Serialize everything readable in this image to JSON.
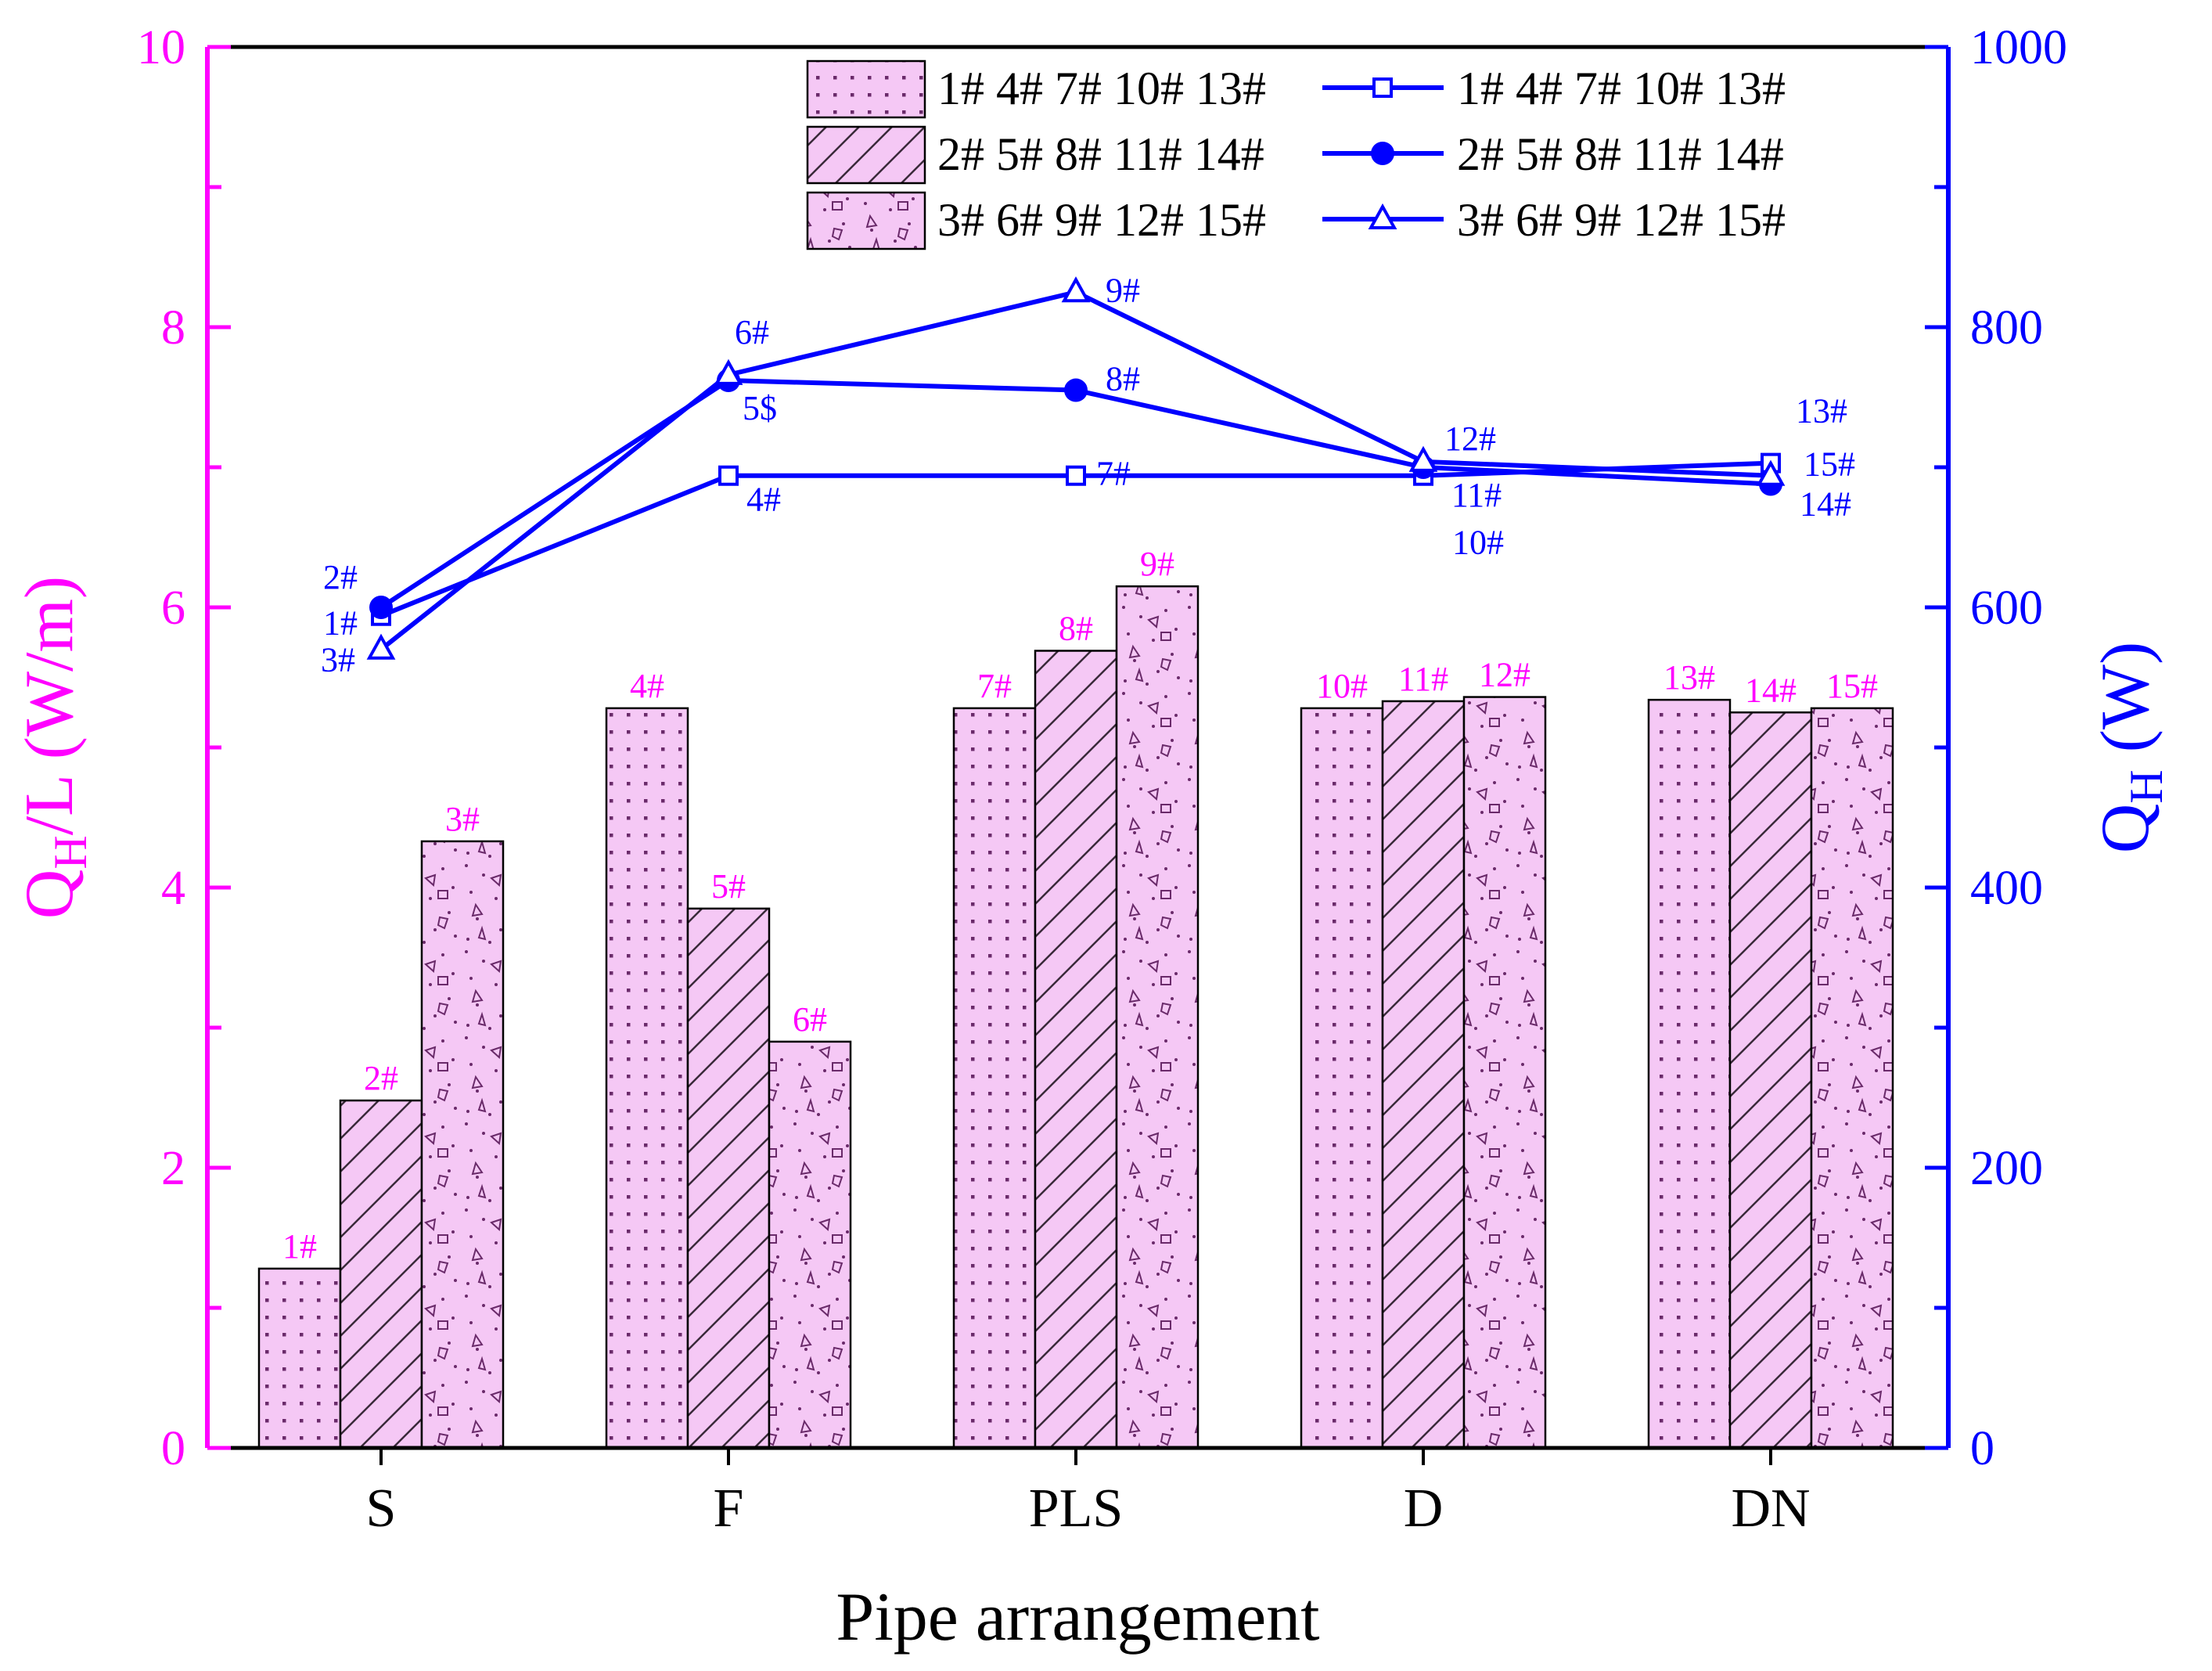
{
  "chart_data": {
    "type": "bar+line",
    "title": "",
    "xlabel": "Pipe arrangement",
    "ylabel_left": {
      "main": "Q",
      "sub": "H",
      "rest": "/L (W/m)"
    },
    "ylabel_right": {
      "main": "Q",
      "sub": "H",
      "rest": " (W)"
    },
    "categories": [
      "S",
      "F",
      "PLS",
      "D",
      "DN"
    ],
    "y_left": {
      "lim": [
        0,
        10
      ],
      "ticks": [
        0,
        2,
        4,
        6,
        8,
        10
      ],
      "tick_labels": [
        "0",
        "2",
        "4",
        "6",
        "8",
        "10"
      ]
    },
    "y_right": {
      "lim": [
        0,
        1000
      ],
      "ticks": [
        0,
        200,
        400,
        600,
        800,
        1000
      ],
      "tick_labels": [
        "0",
        "200",
        "400",
        "600",
        "800",
        "1000"
      ]
    },
    "bar_series": [
      {
        "name": "1# 4# 7# 10# 13#",
        "pattern": "dots",
        "values": [
          1.28,
          5.28,
          5.28,
          5.28,
          5.34
        ],
        "labels": [
          "1#",
          "4#",
          "7#",
          "10#",
          "13#"
        ]
      },
      {
        "name": "2# 5# 8# 11# 14#",
        "pattern": "hatch",
        "values": [
          2.48,
          3.85,
          5.69,
          5.33,
          5.25
        ],
        "labels": [
          "2#",
          "5#",
          "8#",
          "11#",
          "14#"
        ]
      },
      {
        "name": "3# 6# 9# 12# 15#",
        "pattern": "speckle",
        "values": [
          4.33,
          2.9,
          6.15,
          5.36,
          5.28
        ],
        "labels": [
          "3#",
          "6#",
          "9#",
          "12#",
          "15#"
        ]
      }
    ],
    "line_series": [
      {
        "name": "1# 4# 7# 10# 13#",
        "marker": "open-square",
        "values": [
          594,
          694,
          694,
          694,
          703
        ],
        "labels": [
          "1#",
          "4#",
          "7#",
          "10#",
          "13#"
        ]
      },
      {
        "name": "2# 5# 8# 11# 14#",
        "marker": "filled-circle",
        "values": [
          600,
          762,
          755,
          700,
          688
        ],
        "labels": [
          "2#",
          "5$",
          "8#",
          "11#",
          "14#"
        ]
      },
      {
        "name": "3# 6# 9# 12# 15#",
        "marker": "open-triangle",
        "values": [
          570,
          766,
          825,
          704,
          694
        ],
        "labels": [
          "3#",
          "6#",
          "9#",
          "12#",
          "15#"
        ]
      }
    ],
    "colors": {
      "left_axis": "#ff00ff",
      "right_axis": "#0000ff",
      "bar_fill": "#f5c8f5",
      "bar_pattern": "#6a2a6a",
      "line": "#0000ff",
      "frame": "#000000"
    },
    "legend_placement": "top-right",
    "grid": false
  }
}
